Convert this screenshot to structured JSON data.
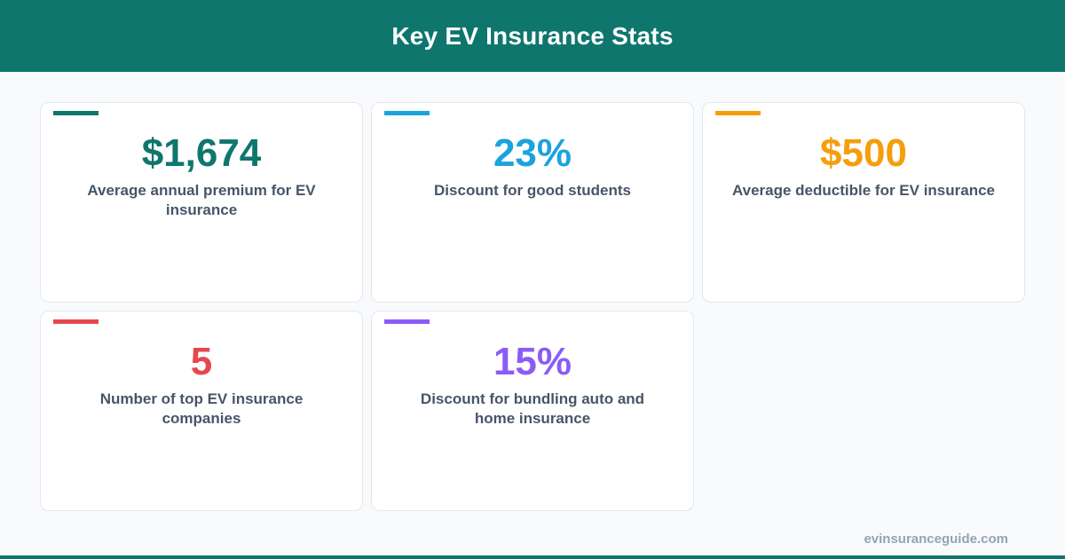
{
  "header": {
    "title": "Key EV Insurance Stats"
  },
  "colors": {
    "brand": "#0f766e",
    "background": "#f8fafc",
    "card_border": "#e2e8f0",
    "label_text": "#475569",
    "footer_text": "#94a3b8"
  },
  "stats": [
    {
      "value": "$1,674",
      "label": "Average annual premium for EV insurance",
      "color": "#0f766e"
    },
    {
      "value": "23%",
      "label": "Discount for good students",
      "color": "#1ba3dd"
    },
    {
      "value": "$500",
      "label": "Average deductible for EV insurance",
      "color": "#f59e0b"
    },
    {
      "value": "5",
      "label": "Number of top EV insurance companies",
      "color": "#e5484d"
    },
    {
      "value": "15%",
      "label": "Discount for bundling auto and home insurance",
      "color": "#8b5cf6"
    }
  ],
  "footer": {
    "site": "evinsuranceguide.com"
  }
}
